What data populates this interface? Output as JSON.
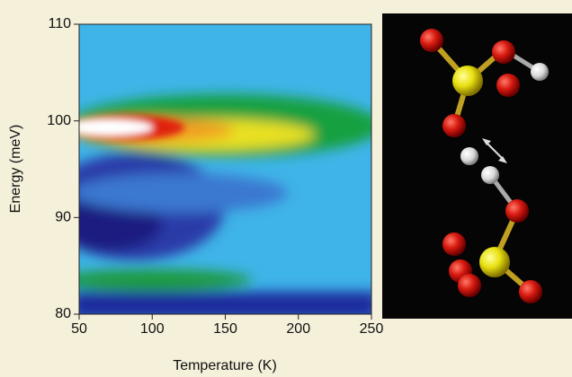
{
  "chart_data": {
    "type": "heatmap",
    "x_label": "Temperature (K)",
    "y_label": "Energy (meV)",
    "xlim": [
      50,
      250
    ],
    "xticks": [
      50,
      100,
      150,
      200,
      250
    ],
    "ylim": [
      80,
      110
    ],
    "yticks": [
      80,
      90,
      100,
      110
    ]
  }
}
